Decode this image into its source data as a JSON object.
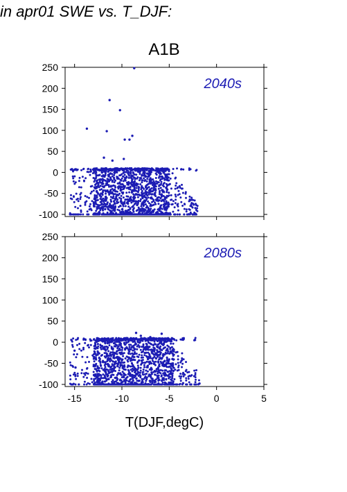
{
  "title": "in apr01 SWE vs. T_DJF:",
  "subtitle": "A1B",
  "colors": {
    "points": "#1c1cb4",
    "axis": "#000000",
    "panel_text": "#1c1cb4"
  },
  "chart_data": [
    {
      "type": "scatter",
      "panel_label": "2040s",
      "xlabel": "T(DJF,degC)",
      "ylabel": "",
      "xlim": [
        -16,
        5
      ],
      "ylim": [
        -105,
        250
      ],
      "x_ticks": [
        "-15",
        "-10",
        "-5",
        "0",
        "5"
      ],
      "y_ticks": [
        "250",
        "200",
        "150",
        "100",
        "50",
        "0",
        "-50",
        "-100"
      ],
      "cluster": {
        "x_range": [
          -15.5,
          -2
        ],
        "y_range": [
          -100,
          10
        ],
        "dense_x_range": [
          -13,
          -5
        ]
      },
      "outliers": [
        {
          "x": -8.7,
          "y": 248
        },
        {
          "x": -11.3,
          "y": 172
        },
        {
          "x": -10.2,
          "y": 148
        },
        {
          "x": -13.7,
          "y": 104
        },
        {
          "x": -11.6,
          "y": 98
        },
        {
          "x": -8.9,
          "y": 87
        },
        {
          "x": -9.7,
          "y": 78
        },
        {
          "x": -9.2,
          "y": 78
        },
        {
          "x": -11.9,
          "y": 35
        },
        {
          "x": -9.8,
          "y": 32
        },
        {
          "x": -11.0,
          "y": 28
        },
        {
          "x": -2.5,
          "y": -100
        }
      ]
    },
    {
      "type": "scatter",
      "panel_label": "2080s",
      "xlabel": "T(DJF,degC)",
      "ylabel": "",
      "xlim": [
        -16,
        5
      ],
      "ylim": [
        -105,
        250
      ],
      "x_ticks": [
        "-15",
        "-10",
        "-5",
        "0",
        "5"
      ],
      "y_ticks": [
        "250",
        "200",
        "150",
        "100",
        "50",
        "0",
        "-50",
        "-100"
      ],
      "cluster": {
        "x_range": [
          -15.5,
          -1.8
        ],
        "y_range": [
          -100,
          10
        ],
        "dense_x_range": [
          -13,
          -4.5
        ]
      },
      "outliers": [
        {
          "x": -8.5,
          "y": 22
        },
        {
          "x": -5.8,
          "y": 20
        },
        {
          "x": -8.0,
          "y": 15
        },
        {
          "x": -7.0,
          "y": 12
        },
        {
          "x": -15.0,
          "y": -20
        },
        {
          "x": -14.9,
          "y": -60
        },
        {
          "x": -1.8,
          "y": -98
        }
      ]
    }
  ]
}
